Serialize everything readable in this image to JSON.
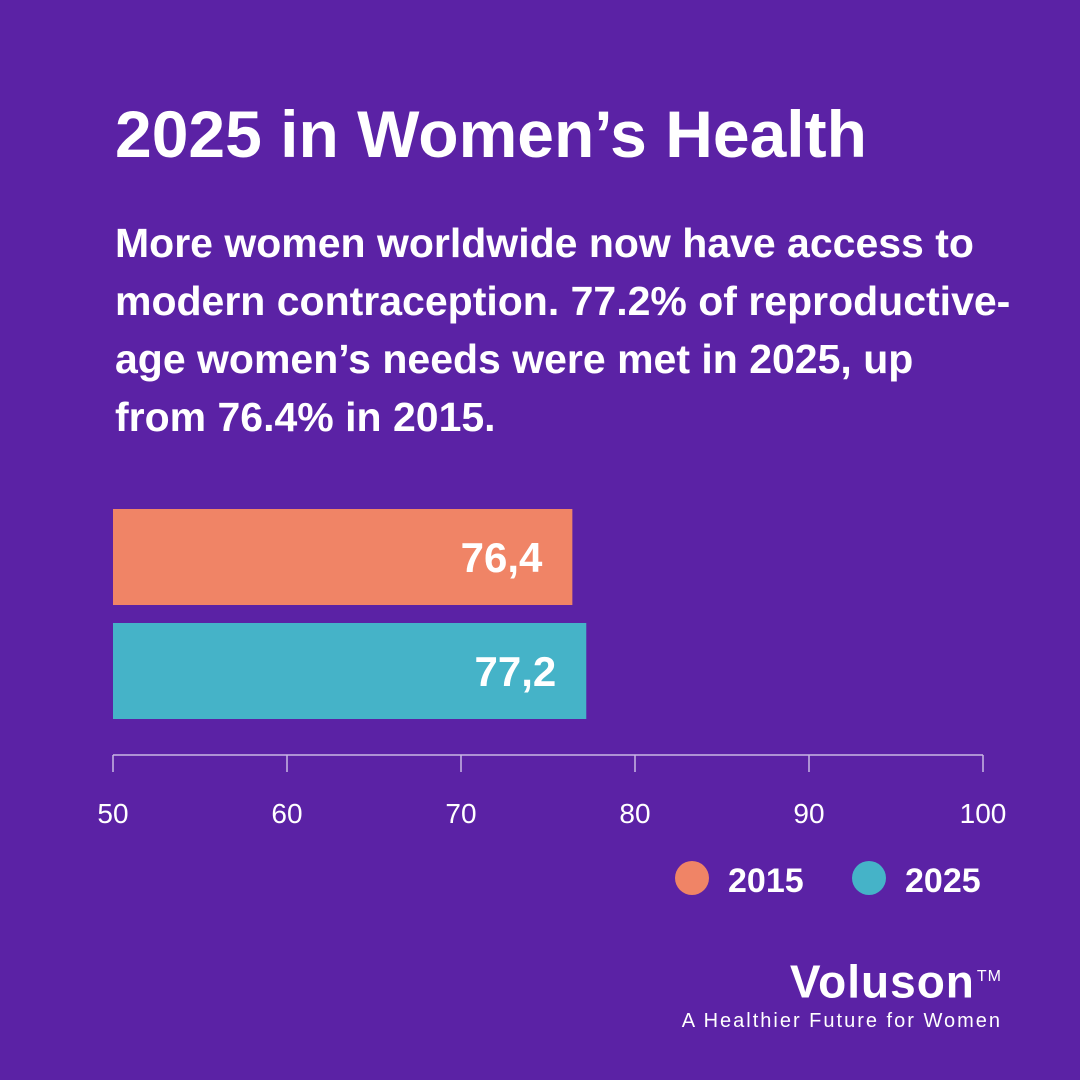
{
  "page": {
    "title": "2025 in Women’s Health",
    "subtitle": "More women worldwide now have access to modern contraception. 77.2% of reproductive-age women’s needs were met in 2025, up from 76.4% in 2015.",
    "background_color": "#5b22a5"
  },
  "chart_data": {
    "type": "bar",
    "orientation": "horizontal",
    "title": "",
    "xlabel": "",
    "ylabel": "",
    "xlim": [
      50,
      100
    ],
    "xticks": [
      50,
      60,
      70,
      80,
      90,
      100
    ],
    "grid": false,
    "legend_placement": "bottom-right",
    "series": [
      {
        "name": "2015",
        "value": 76.4,
        "label": "76,4",
        "color": "#f08466"
      },
      {
        "name": "2025",
        "value": 77.2,
        "label": "77,2",
        "color": "#45b3c8"
      }
    ]
  },
  "brand": {
    "name": "Voluson",
    "trademark": "TM",
    "tagline": "A Healthier Future for Women"
  }
}
